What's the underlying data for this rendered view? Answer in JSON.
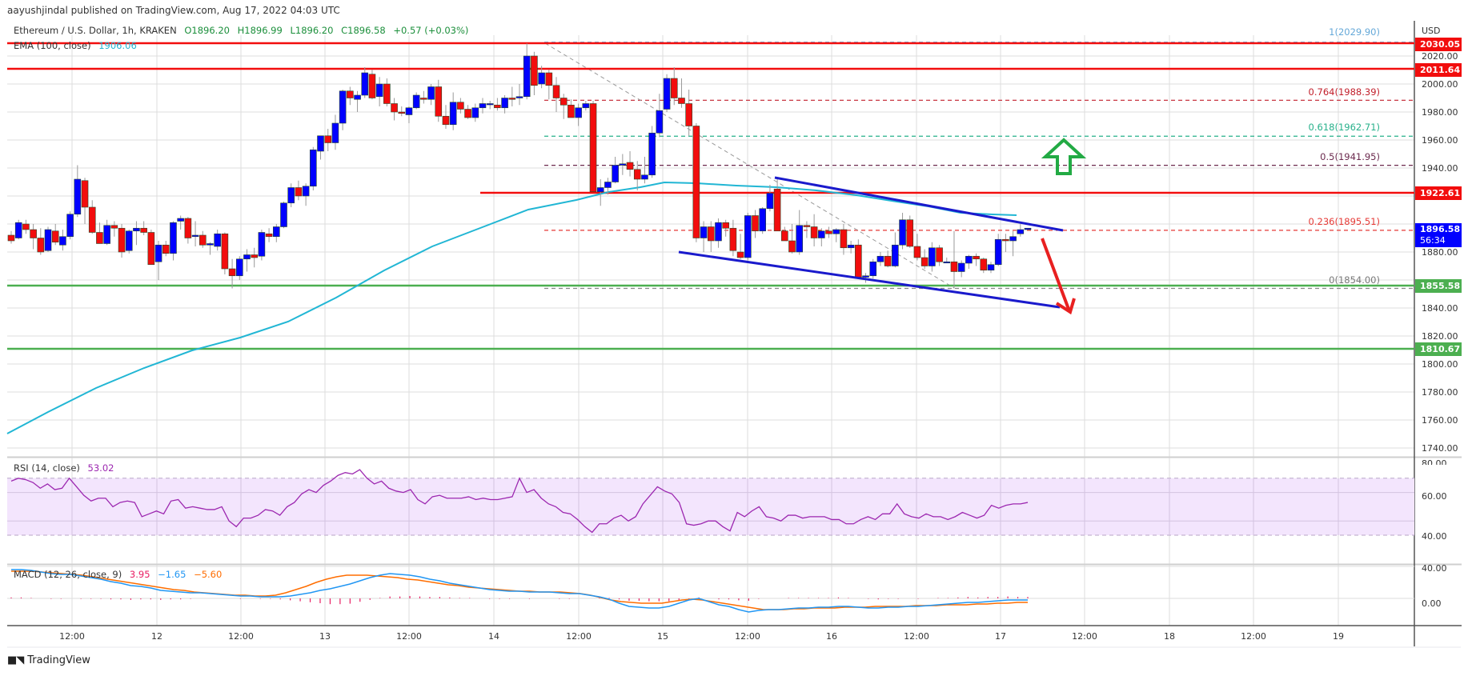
{
  "header": {
    "publisher": "aayushjindal published on TradingView.com, Aug 17, 2022 04:03 UTC"
  },
  "legend": {
    "symbol": "Ethereum / U.S. Dollar, 1h, KRAKEN",
    "open": "O1896.20",
    "high": "H1896.99",
    "low": "L1896.20",
    "close": "C1896.58",
    "change": "+0.57 (+0.03%)",
    "ema_label": "EMA (100, close)",
    "ema_value": "1906.06",
    "rsi_label": "RSI (14, close)",
    "rsi_value": "53.02",
    "macd_label": "MACD (12, 26, close, 9)",
    "macd_hist": "3.95",
    "macd_line": "−1.65",
    "macd_signal": "−5.60"
  },
  "price_axis": {
    "currency": "USD",
    "ticks": [
      "2020.00",
      "2000.00",
      "1980.00",
      "1960.00",
      "1940.00",
      "1880.00",
      "1840.00",
      "1820.00",
      "1800.00",
      "1780.00",
      "1760.00",
      "1740.00"
    ],
    "tags": [
      {
        "label": "2030.05",
        "color": "#f20d0d"
      },
      {
        "label": "2011.64",
        "color": "#f20d0d"
      },
      {
        "label": "1922.61",
        "color": "#f20d0d"
      },
      {
        "label": "1896.58",
        "sub": "56:34",
        "color": "#0000ff"
      },
      {
        "label": "1855.58",
        "color": "#4caf50"
      },
      {
        "label": "1810.67",
        "color": "#4caf50"
      }
    ],
    "rsi_ticks": [
      "80.00",
      "60.00",
      "40.00"
    ],
    "macd_ticks": [
      "40.00",
      "0.00"
    ]
  },
  "fib_levels": [
    {
      "label": "1(2029.90)",
      "color": "#64a8d8"
    },
    {
      "label": "0.764(1988.39)",
      "color": "#c21f2b"
    },
    {
      "label": "0.618(1962.71)",
      "color": "#26b08a"
    },
    {
      "label": "0.5(1941.95)",
      "color": "#6b2a4e"
    },
    {
      "label": "0.236(1895.51)",
      "color": "#e53935"
    },
    {
      "label": "0(1854.00)",
      "color": "#777777"
    }
  ],
  "time_axis": [
    "12:00",
    "12",
    "12:00",
    "13",
    "12:00",
    "14",
    "12:00",
    "15",
    "12:00",
    "16",
    "12:00",
    "17",
    "12:00",
    "18",
    "12:00",
    "19"
  ],
  "footer": {
    "brand": "TradingView"
  },
  "colors": {
    "up": "#0000ff",
    "down": "#f20d0d",
    "ema": "#21b6d4",
    "rsi": "#9c27b0",
    "rsi_band": "#f3e5fd",
    "macd": "#2196f3",
    "signal": "#ff6d00",
    "hist": "#e91e63",
    "resistance": "#f20d0d",
    "support": "#4caf50",
    "channel": "#1a1acc",
    "arrow_up": "#22aa44",
    "arrow_down": "#e82020"
  },
  "chart_data": {
    "type": "candlestick",
    "title": "Ethereum / U.S. Dollar, 1h, KRAKEN",
    "ylabel": "USD",
    "ylim": [
      1730,
      2040
    ],
    "x_ticks": [
      "Aug 11 12:00",
      "Aug 12",
      "Aug 12 12:00",
      "Aug 13",
      "Aug 13 12:00",
      "Aug 14",
      "Aug 14 12:00",
      "Aug 15",
      "Aug 15 12:00",
      "Aug 16",
      "Aug 16 12:00",
      "Aug 17",
      "Aug 17 12:00",
      "Aug 18",
      "Aug 18 12:00",
      "Aug 19"
    ],
    "last": {
      "open": 1896.2,
      "high": 1896.99,
      "low": 1896.2,
      "close": 1896.58,
      "change": 0.57,
      "change_pct": 0.03
    },
    "horizontal_levels": {
      "resistance": [
        2030.05,
        2011.64,
        1922.61
      ],
      "support": [
        1855.58,
        1810.67
      ]
    },
    "fibonacci": {
      "1": 2029.9,
      "0.764": 1988.39,
      "0.618": 1962.71,
      "0.5": 1941.95,
      "0.236": 1895.51,
      "0": 1854.0
    },
    "ema100_last": 1906.06,
    "rsi": {
      "period": 14,
      "last": 53.02,
      "band": [
        30,
        70
      ],
      "ylim": [
        20,
        85
      ]
    },
    "macd": {
      "fast": 12,
      "slow": 26,
      "signal": 9,
      "hist": 3.95,
      "macd": -1.65,
      "signal_value": -5.6
    },
    "channel": {
      "upper": [
        [
          1.0,
          1932
        ],
        [
          1.0,
          1932
        ]
      ],
      "note": "descending channel"
    },
    "candles_ohlc": [
      [
        1892,
        1895,
        1886,
        1888
      ],
      [
        1890,
        1903,
        1889,
        1901
      ],
      [
        1900,
        1903,
        1893,
        1896
      ],
      [
        1896,
        1900,
        1882,
        1890
      ],
      [
        1890,
        1897,
        1878,
        1880
      ],
      [
        1881,
        1898,
        1880,
        1896
      ],
      [
        1895,
        1900,
        1885,
        1887
      ],
      [
        1885,
        1896,
        1881,
        1891
      ],
      [
        1891,
        1909,
        1889,
        1907
      ],
      [
        1907,
        1942,
        1905,
        1932
      ],
      [
        1931,
        1933,
        1900,
        1912
      ],
      [
        1912,
        1917,
        1893,
        1894
      ],
      [
        1894,
        1901,
        1886,
        1886
      ],
      [
        1886,
        1903,
        1885,
        1899
      ],
      [
        1899,
        1902,
        1891,
        1897
      ],
      [
        1897,
        1900,
        1876,
        1880
      ],
      [
        1881,
        1896,
        1879,
        1895
      ],
      [
        1895,
        1902,
        1885,
        1897
      ],
      [
        1897,
        1902,
        1892,
        1894
      ],
      [
        1894,
        1896,
        1872,
        1871
      ],
      [
        1873,
        1888,
        1860,
        1885
      ],
      [
        1885,
        1888,
        1877,
        1879
      ],
      [
        1879,
        1902,
        1874,
        1901
      ],
      [
        1902,
        1906,
        1896,
        1904
      ],
      [
        1904,
        1905,
        1886,
        1890
      ],
      [
        1891,
        1902,
        1884,
        1892
      ],
      [
        1892,
        1895,
        1883,
        1885
      ],
      [
        1885,
        1887,
        1878,
        1886
      ],
      [
        1884,
        1896,
        1881,
        1893
      ],
      [
        1893,
        1894,
        1864,
        1868
      ],
      [
        1868,
        1875,
        1854,
        1863
      ],
      [
        1863,
        1877,
        1860,
        1875
      ],
      [
        1875,
        1882,
        1866,
        1878
      ],
      [
        1878,
        1883,
        1869,
        1876
      ],
      [
        1877,
        1896,
        1874,
        1894
      ],
      [
        1893,
        1897,
        1887,
        1891
      ],
      [
        1891,
        1900,
        1887,
        1898
      ],
      [
        1898,
        1916,
        1897,
        1915
      ],
      [
        1915,
        1929,
        1912,
        1926
      ],
      [
        1926,
        1931,
        1917,
        1920
      ],
      [
        1920,
        1929,
        1913,
        1927
      ],
      [
        1927,
        1955,
        1924,
        1953
      ],
      [
        1952,
        1961,
        1946,
        1963
      ],
      [
        1963,
        1968,
        1952,
        1958
      ],
      [
        1958,
        1978,
        1953,
        1972
      ],
      [
        1972,
        1996,
        1967,
        1995
      ],
      [
        1995,
        1998,
        1985,
        1990
      ],
      [
        1989,
        1995,
        1980,
        1992
      ],
      [
        1992,
        2012,
        1990,
        2008
      ],
      [
        2007,
        2010,
        1989,
        1990
      ],
      [
        1991,
        2005,
        1984,
        2000
      ],
      [
        2000,
        2004,
        1984,
        1986
      ],
      [
        1986,
        1990,
        1974,
        1980
      ],
      [
        1980,
        1984,
        1977,
        1979
      ],
      [
        1978,
        1984,
        1972,
        1983
      ],
      [
        1983,
        1994,
        1982,
        1992
      ],
      [
        1990,
        1995,
        1986,
        1989
      ],
      [
        1989,
        2000,
        1985,
        1998
      ],
      [
        1998,
        2003,
        1973,
        1977
      ],
      [
        1977,
        1985,
        1968,
        1971
      ],
      [
        1971,
        1994,
        1967,
        1987
      ],
      [
        1987,
        1990,
        1979,
        1982
      ],
      [
        1982,
        1985,
        1975,
        1976
      ],
      [
        1976,
        1986,
        1973,
        1983
      ],
      [
        1983,
        1990,
        1979,
        1986
      ],
      [
        1986,
        1988,
        1982,
        1986
      ],
      [
        1985,
        1990,
        1981,
        1983
      ],
      [
        1983,
        1992,
        1979,
        1990
      ],
      [
        1990,
        1998,
        1984,
        1989
      ],
      [
        1990,
        2000,
        1985,
        1991
      ],
      [
        1991,
        2029,
        1989,
        2020
      ],
      [
        2020,
        2023,
        1992,
        1999
      ],
      [
        2000,
        2013,
        1997,
        2008
      ],
      [
        2008,
        2010,
        1989,
        1999
      ],
      [
        1999,
        2005,
        1980,
        1990
      ],
      [
        1990,
        1993,
        1975,
        1985
      ],
      [
        1985,
        1989,
        1977,
        1976
      ],
      [
        1976,
        1986,
        1970,
        1983
      ],
      [
        1983,
        1988,
        1981,
        1986
      ],
      [
        1986,
        1988,
        1935,
        1923
      ],
      [
        1923,
        1932,
        1913,
        1926
      ],
      [
        1926,
        1933,
        1921,
        1930
      ],
      [
        1930,
        1948,
        1929,
        1942
      ],
      [
        1942,
        1950,
        1935,
        1943
      ],
      [
        1944,
        1952,
        1934,
        1939
      ],
      [
        1939,
        1945,
        1924,
        1932
      ],
      [
        1932,
        1948,
        1929,
        1935
      ],
      [
        1935,
        1970,
        1933,
        1965
      ],
      [
        1965,
        1993,
        1962,
        1981
      ],
      [
        1982,
        2007,
        1980,
        2004
      ],
      [
        2004,
        2012,
        1985,
        1990
      ],
      [
        1990,
        2004,
        1983,
        1986
      ],
      [
        1986,
        1996,
        1963,
        1970
      ],
      [
        1970,
        1972,
        1887,
        1890
      ],
      [
        1890,
        1902,
        1880,
        1898
      ],
      [
        1898,
        1902,
        1880,
        1888
      ],
      [
        1888,
        1904,
        1883,
        1901
      ],
      [
        1901,
        1903,
        1891,
        1897
      ],
      [
        1897,
        1903,
        1877,
        1881
      ],
      [
        1880,
        1893,
        1875,
        1876
      ],
      [
        1876,
        1908,
        1874,
        1906
      ],
      [
        1906,
        1910,
        1890,
        1895
      ],
      [
        1895,
        1912,
        1893,
        1911
      ],
      [
        1911,
        1928,
        1909,
        1922
      ],
      [
        1925,
        1932,
        1899,
        1895
      ],
      [
        1895,
        1898,
        1890,
        1888
      ],
      [
        1888,
        1900,
        1879,
        1880
      ],
      [
        1880,
        1910,
        1878,
        1899
      ],
      [
        1899,
        1902,
        1890,
        1898
      ],
      [
        1898,
        1907,
        1884,
        1890
      ],
      [
        1890,
        1897,
        1884,
        1895
      ],
      [
        1895,
        1898,
        1890,
        1893
      ],
      [
        1893,
        1897,
        1887,
        1896
      ],
      [
        1896,
        1900,
        1878,
        1883
      ],
      [
        1883,
        1888,
        1879,
        1885
      ],
      [
        1885,
        1889,
        1864,
        1862
      ],
      [
        1862,
        1865,
        1858,
        1863
      ],
      [
        1863,
        1875,
        1861,
        1873
      ],
      [
        1873,
        1880,
        1870,
        1877
      ],
      [
        1877,
        1881,
        1869,
        1870
      ],
      [
        1870,
        1894,
        1869,
        1885
      ],
      [
        1885,
        1908,
        1882,
        1903
      ],
      [
        1903,
        1906,
        1883,
        1884
      ],
      [
        1884,
        1893,
        1874,
        1876
      ],
      [
        1876,
        1882,
        1868,
        1870
      ],
      [
        1870,
        1887,
        1866,
        1883
      ],
      [
        1883,
        1885,
        1870,
        1873
      ],
      [
        1873,
        1876,
        1872,
        1873
      ],
      [
        1873,
        1895,
        1854,
        1866
      ],
      [
        1866,
        1874,
        1862,
        1872
      ],
      [
        1872,
        1878,
        1868,
        1877
      ],
      [
        1877,
        1879,
        1870,
        1875
      ],
      [
        1875,
        1876,
        1865,
        1867
      ],
      [
        1867,
        1873,
        1865,
        1871
      ],
      [
        1871,
        1893,
        1870,
        1889
      ],
      [
        1889,
        1893,
        1880,
        1888
      ],
      [
        1888,
        1895,
        1877,
        1891
      ],
      [
        1893,
        1900,
        1891,
        1896
      ],
      [
        1896,
        1897,
        1896,
        1897
      ]
    ]
  }
}
